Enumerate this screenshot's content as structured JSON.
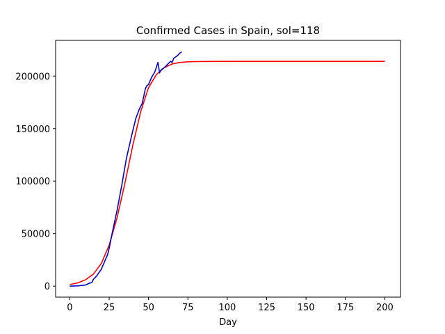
{
  "chart_data": {
    "type": "line",
    "title": "Confirmed Cases in Spain, sol=118",
    "xlabel": "Day",
    "ylabel": "",
    "xlim": [
      -9,
      210
    ],
    "ylim": [
      -10500,
      234000
    ],
    "xticks": [
      0,
      25,
      50,
      75,
      100,
      125,
      150,
      175,
      200
    ],
    "yticks": [
      0,
      50000,
      100000,
      150000,
      200000
    ],
    "grid": false,
    "series": [
      {
        "color": "#ff0000",
        "x": [
          0,
          5,
          10,
          15,
          20,
          25,
          30,
          35,
          40,
          45,
          50,
          55,
          60,
          65,
          70,
          75,
          80,
          90,
          100,
          120,
          150,
          200
        ],
        "y": [
          1500,
          3000,
          6000,
          11500,
          21500,
          39000,
          65000,
          98000,
          134000,
          166000,
          189000,
          201500,
          208000,
          211500,
          213000,
          213600,
          213800,
          213900,
          214000,
          214000,
          214000,
          214000
        ]
      },
      {
        "color": "#0000cc",
        "x": [
          0,
          5,
          10,
          12,
          14,
          15,
          17,
          20,
          22,
          24,
          25,
          27,
          30,
          33,
          36,
          38,
          40,
          42,
          44,
          46,
          48,
          49,
          50,
          52,
          54,
          56,
          57,
          58,
          60,
          62,
          64,
          65,
          66,
          68,
          70,
          71
        ],
        "y": [
          0,
          200,
          1000,
          2500,
          3500,
          6500,
          9500,
          16000,
          23000,
          30000,
          36000,
          51000,
          72000,
          96000,
          122000,
          135000,
          148000,
          160000,
          168000,
          174000,
          188000,
          191000,
          192000,
          199000,
          204000,
          213000,
          203000,
          206000,
          208000,
          211000,
          214000,
          213000,
          217000,
          219000,
          222000,
          223000
        ]
      }
    ]
  }
}
